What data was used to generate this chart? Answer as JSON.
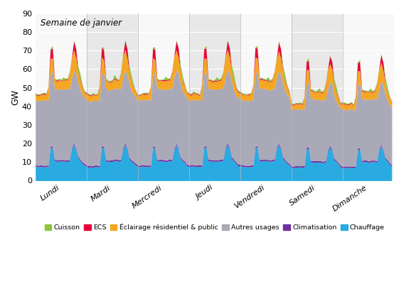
{
  "title": "Semaine de janvier",
  "ylabel": "GW",
  "ylim": [
    0,
    90
  ],
  "yticks": [
    0,
    10,
    20,
    30,
    40,
    50,
    60,
    70,
    80,
    90
  ],
  "days": [
    "Lundi",
    "Mardi",
    "Mercredi",
    "Jeudi",
    "Vendredi",
    "Samedi",
    "Dimanche"
  ],
  "n_points": 168,
  "colors": {
    "chauffage": "#29ABE2",
    "climatisation": "#7030A0",
    "autres_usages": "#A9A9B8",
    "eclairage": "#F5A623",
    "ecs": "#E8003D",
    "cuisson": "#8DC63F"
  },
  "legend_labels": [
    "Cuisson",
    "ECS",
    "Éclairage résidentiel & public",
    "Autres usages",
    "Climatisation",
    "Chauffage"
  ],
  "background_color": "#FFFFFF",
  "grid_color": "#FFFFFF",
  "day_bg_light": "#F8F8F8",
  "day_bg_dark": "#E8E8E8"
}
